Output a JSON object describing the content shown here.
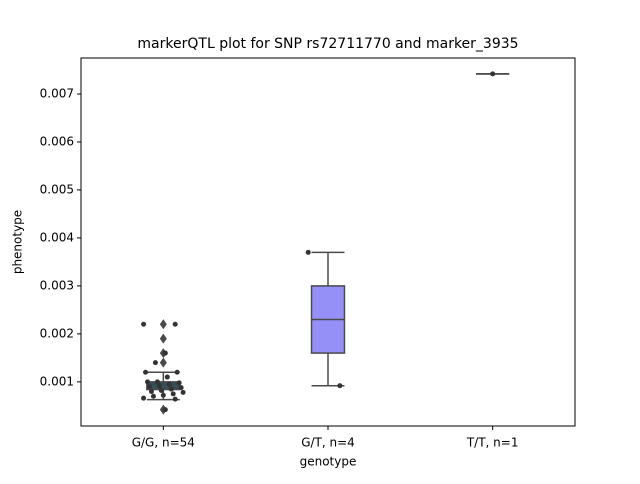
{
  "chart_data": {
    "type": "box",
    "title": "markerQTL plot for SNP rs72711770 and marker_3935",
    "x_label": "genotype",
    "y_label": "phenotype",
    "categories": [
      "G/G, n=54",
      "G/T, n=4",
      "T/T, n=1"
    ],
    "boxes": [
      {
        "color": "#2f4f5f",
        "whislo": 0.00063,
        "q1": 0.00084,
        "med": 0.0009,
        "q3": 0.001,
        "whishi": 0.0012,
        "fliers": [
          0.0022,
          0.0019,
          0.0016,
          0.0014,
          0.00042
        ],
        "points": [
          0.0022,
          0.0022,
          0.0016,
          0.0014,
          0.0012,
          0.0012,
          0.0011,
          0.001,
          0.001,
          0.00098,
          0.00095,
          0.00092,
          0.0009,
          0.00088,
          0.00085,
          0.00082,
          0.0008,
          0.00078,
          0.00075,
          0.00072,
          0.0007,
          0.00066,
          0.00064,
          0.00042
        ]
      },
      {
        "color": "#9590f8",
        "whislo": 0.00092,
        "q1": 0.0016,
        "med": 0.0023,
        "q3": 0.003,
        "whishi": 0.0037,
        "fliers": [],
        "points": [
          0.0037,
          0.00092
        ]
      },
      {
        "color": "#ff8c8c",
        "whislo": 0.00742,
        "q1": 0.00742,
        "med": 0.00742,
        "q3": 0.00742,
        "whishi": 0.00742,
        "fliers": [],
        "points": [
          0.00742
        ]
      }
    ],
    "ylim": [
      8e-05,
      0.00775
    ],
    "yticks": [
      0.001,
      0.002,
      0.003,
      0.004,
      0.005,
      0.006,
      0.007
    ]
  }
}
